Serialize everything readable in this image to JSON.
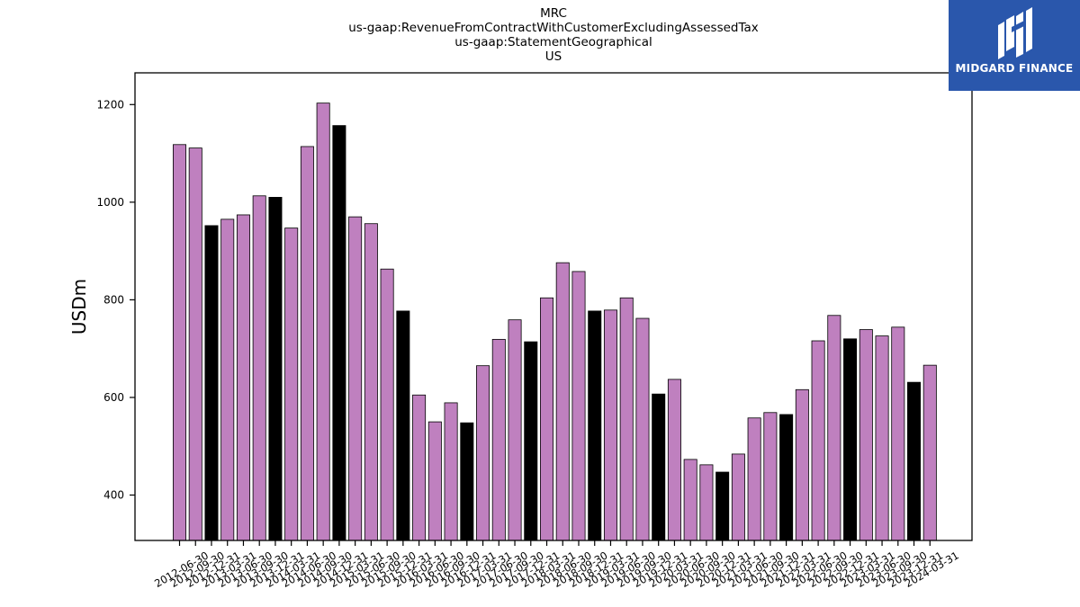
{
  "chart_data": {
    "type": "bar",
    "title": [
      "MRC",
      "us-gaap:RevenueFromContractWithCustomerExcludingAssessedTax",
      "us-gaap:StatementGeographical",
      "US"
    ],
    "xlabel": "",
    "ylabel": "USDm",
    "ylim": [
      307,
      1265
    ],
    "yticks": [
      400,
      600,
      800,
      1000,
      1200
    ],
    "grid": false,
    "legend": "none",
    "colors": {
      "bar_default": "#bf80bf",
      "bar_highlight": "#000000",
      "edge": "#000000"
    },
    "highlight_rule": "fiscal year-end quarters drawn black",
    "categories": [
      "2012-06-30",
      "2012-09-30",
      "2012-12-31",
      "2013-03-31",
      "2013-06-30",
      "2013-09-30",
      "2013-12-31",
      "2014-03-31",
      "2014-06-30",
      "2014-09-30",
      "2014-12-31",
      "2015-03-31",
      "2015-06-30",
      "2015-09-30",
      "2015-12-31",
      "2016-03-31",
      "2016-06-30",
      "2016-09-30",
      "2016-12-31",
      "2017-03-31",
      "2017-06-30",
      "2017-09-30",
      "2017-12-31",
      "2018-03-31",
      "2018-06-30",
      "2018-09-30",
      "2018-12-31",
      "2019-03-31",
      "2019-06-30",
      "2019-09-30",
      "2019-12-31",
      "2020-03-31",
      "2020-06-30",
      "2020-09-30",
      "2020-12-31",
      "2021-03-31",
      "2021-06-30",
      "2021-09-30",
      "2021-12-31",
      "2022-03-31",
      "2022-06-30",
      "2022-09-30",
      "2022-12-31",
      "2023-03-31",
      "2023-06-30",
      "2023-09-30",
      "2023-12-31",
      "2024-03-31"
    ],
    "values": [
      1118,
      1111,
      952,
      965,
      974,
      1013,
      1010,
      947,
      1114,
      1203,
      1157,
      970,
      956,
      863,
      777,
      605,
      550,
      589,
      548,
      665,
      719,
      759,
      714,
      804,
      876,
      858,
      777,
      779,
      804,
      762,
      607,
      637,
      473,
      462,
      447,
      484,
      558,
      569,
      565,
      616,
      716,
      768,
      720,
      739,
      726,
      744,
      631,
      666
    ],
    "highlight": [
      false,
      false,
      true,
      false,
      false,
      false,
      true,
      false,
      false,
      false,
      true,
      false,
      false,
      false,
      true,
      false,
      false,
      false,
      true,
      false,
      false,
      false,
      true,
      false,
      false,
      false,
      true,
      false,
      false,
      false,
      true,
      false,
      false,
      false,
      true,
      false,
      false,
      false,
      true,
      false,
      false,
      false,
      true,
      false,
      false,
      false,
      true,
      false
    ]
  },
  "logo": {
    "text": "MIDGARD FINANCE"
  }
}
